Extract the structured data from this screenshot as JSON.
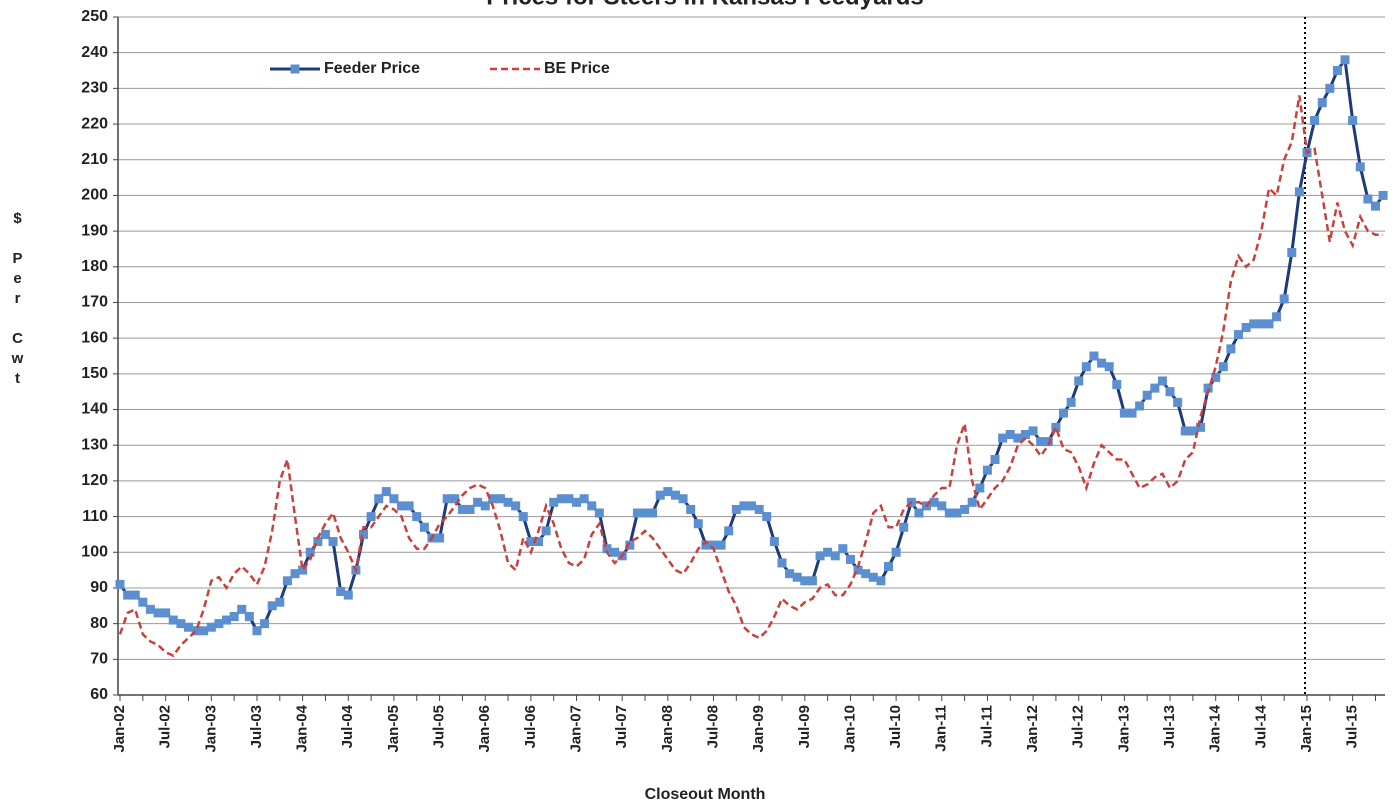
{
  "chart_data": {
    "type": "line",
    "title": "Prices for Steers in Kansas Feedyards",
    "x_label": "Closeout Month",
    "y_label": "$ Per Cwt",
    "categories": [
      "Jan-02",
      null,
      null,
      null,
      null,
      null,
      "Jul-02",
      null,
      null,
      null,
      null,
      null,
      "Jan-03",
      null,
      null,
      null,
      null,
      null,
      "Jul-03",
      null,
      null,
      null,
      null,
      null,
      "Jan-04",
      null,
      null,
      null,
      null,
      null,
      "Jul-04",
      null,
      null,
      null,
      null,
      null,
      "Jan-05",
      null,
      null,
      null,
      null,
      null,
      "Jul-05",
      null,
      null,
      null,
      null,
      null,
      "Jan-06",
      null,
      null,
      null,
      null,
      null,
      "Jul-06",
      null,
      null,
      null,
      null,
      null,
      "Jan-07",
      null,
      null,
      null,
      null,
      null,
      "Jul-07",
      null,
      null,
      null,
      null,
      null,
      "Jan-08",
      null,
      null,
      null,
      null,
      null,
      "Jul-08",
      null,
      null,
      null,
      null,
      null,
      "Jan-09",
      null,
      null,
      null,
      null,
      null,
      "Jul-09",
      null,
      null,
      null,
      null,
      null,
      "Jan-10",
      null,
      null,
      null,
      null,
      null,
      "Jul-10",
      null,
      null,
      null,
      null,
      null,
      "Jan-11",
      null,
      null,
      null,
      null,
      null,
      "Jul-11",
      null,
      null,
      null,
      null,
      null,
      "Jan-12",
      null,
      null,
      null,
      null,
      null,
      "Jul-12",
      null,
      null,
      null,
      null,
      null,
      "Jan-13",
      null,
      null,
      null,
      null,
      null,
      "Jul-13",
      null,
      null,
      null,
      null,
      null,
      "Jan-14",
      null,
      null,
      null,
      null,
      null,
      "Jul-14",
      null,
      null,
      null,
      null,
      null,
      "Jan-15",
      null,
      null,
      null,
      null,
      null,
      "Jul-15",
      null,
      null,
      null,
      null
    ],
    "series": [
      {
        "name": "Feeder Price",
        "color": "#1f3a7a",
        "marker_color": "#5b8fd0",
        "values": [
          91,
          88,
          88,
          86,
          84,
          83,
          83,
          81,
          80,
          79,
          78,
          78,
          79,
          80,
          81,
          82,
          84,
          82,
          78,
          80,
          85,
          86,
          92,
          94,
          95,
          100,
          103,
          105,
          103,
          89,
          88,
          95,
          105,
          110,
          115,
          117,
          115,
          113,
          113,
          110,
          107,
          104,
          104,
          115,
          115,
          112,
          112,
          114,
          113,
          115,
          115,
          114,
          113,
          110,
          103,
          103,
          106,
          114,
          115,
          115,
          114,
          115,
          113,
          111,
          101,
          100,
          99,
          102,
          111,
          111,
          111,
          116,
          117,
          116,
          115,
          112,
          108,
          102,
          102,
          102,
          106,
          112,
          113,
          113,
          112,
          110,
          103,
          97,
          94,
          93,
          92,
          92,
          99,
          100,
          99,
          101,
          98,
          95,
          94,
          93,
          92,
          96,
          100,
          107,
          114,
          111,
          113,
          114,
          113,
          111,
          111,
          112,
          114,
          118,
          123,
          126,
          132,
          133,
          132,
          133,
          134,
          131,
          131,
          135,
          139,
          142,
          148,
          152,
          155,
          153,
          152,
          147,
          139,
          139,
          141,
          144,
          146,
          148,
          145,
          142,
          134,
          134,
          135,
          146,
          149,
          152,
          157,
          161,
          163,
          164,
          164,
          164,
          166,
          171,
          184,
          201,
          212,
          221,
          226,
          230,
          235,
          238,
          221,
          208,
          199,
          197,
          200
        ]
      },
      {
        "name": "BE Price",
        "color": "#c9403c",
        "dashed": true,
        "values": [
          77,
          83,
          84,
          77,
          75,
          74,
          72,
          71,
          74,
          76,
          78,
          84,
          92,
          93,
          90,
          94,
          96,
          94,
          91,
          96,
          106,
          120,
          126,
          110,
          95,
          98,
          104,
          108,
          111,
          104,
          100,
          95,
          107,
          107,
          110,
          113,
          112,
          110,
          104,
          101,
          101,
          104,
          108,
          110,
          113,
          116,
          118,
          119,
          118,
          113,
          106,
          97,
          95,
          104,
          100,
          106,
          113,
          108,
          101,
          97,
          96,
          98,
          105,
          108,
          100,
          97,
          99,
          103,
          104,
          106,
          104,
          101,
          98,
          95,
          94,
          97,
          101,
          103,
          101,
          95,
          89,
          85,
          79,
          77,
          76,
          78,
          82,
          87,
          85,
          84,
          86,
          87,
          90,
          91,
          88,
          88,
          91,
          96,
          103,
          111,
          113,
          107,
          107,
          112,
          114,
          114,
          113,
          116,
          118,
          118,
          130,
          136,
          120,
          112,
          115,
          118,
          120,
          124,
          130,
          132,
          130,
          127,
          130,
          135,
          129,
          128,
          124,
          118,
          125,
          130,
          128,
          126,
          126,
          122,
          118,
          119,
          121,
          122,
          118,
          120,
          126,
          128,
          138,
          145,
          152,
          162,
          176,
          183,
          180,
          182,
          190,
          202,
          200,
          210,
          215,
          228,
          212,
          213,
          200,
          187,
          198,
          190,
          186,
          194,
          190,
          189,
          189
        ]
      }
    ],
    "ylim": [
      60,
      250
    ],
    "yticks": [
      60,
      70,
      80,
      90,
      100,
      110,
      120,
      130,
      140,
      150,
      160,
      170,
      180,
      190,
      200,
      210,
      220,
      230,
      240,
      250
    ],
    "grid": true
  }
}
